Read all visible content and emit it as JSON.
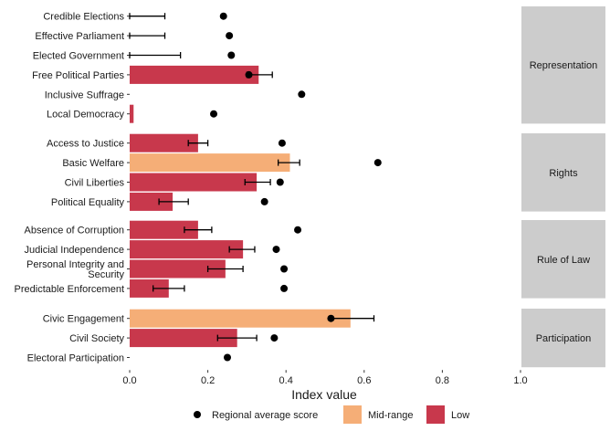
{
  "chart_data": {
    "type": "bar",
    "xlabel": "Index value",
    "xlim": [
      0,
      1
    ],
    "x_ticks": [
      "0.0",
      "0.2",
      "0.4",
      "0.6",
      "0.8",
      "1.0"
    ],
    "legend": {
      "position": "bottom",
      "items": [
        {
          "label": "Regional average score",
          "kind": "point",
          "color": "#000000"
        },
        {
          "label": "Mid-range",
          "kind": "fill",
          "color": "#F5AE77"
        },
        {
          "label": "Low",
          "kind": "fill",
          "color": "#C8384C"
        }
      ]
    },
    "colors": {
      "Mid-range": "#F5AE77",
      "Low": "#C8384C",
      "panel_strip": "#CCCCCC"
    },
    "panels": [
      {
        "name": "Representation",
        "rows": [
          {
            "label": "Credible Elections",
            "value": 0,
            "level": "Low",
            "err": [
              0,
              0.09
            ],
            "regional": 0.24
          },
          {
            "label": "Effective Parliament",
            "value": 0,
            "level": "Low",
            "err": [
              0,
              0.09
            ],
            "regional": 0.255
          },
          {
            "label": "Elected Government",
            "value": 0,
            "level": "Low",
            "err": [
              0,
              0.13
            ],
            "regional": 0.26
          },
          {
            "label": "Free Political Parties",
            "value": 0.33,
            "level": "Low",
            "err": [
              0.3,
              0.365
            ],
            "regional": 0.305
          },
          {
            "label": "Inclusive Suffrage",
            "value": 0,
            "level": "Low",
            "err": null,
            "regional": 0.44
          },
          {
            "label": "Local Democracy",
            "value": 0.01,
            "level": "Low",
            "err": null,
            "regional": 0.215
          }
        ]
      },
      {
        "name": "Rights",
        "rows": [
          {
            "label": "Access to Justice",
            "value": 0.175,
            "level": "Low",
            "err": [
              0.15,
              0.2
            ],
            "regional": 0.39
          },
          {
            "label": "Basic Welfare",
            "value": 0.41,
            "level": "Mid-range",
            "err": [
              0.38,
              0.435
            ],
            "regional": 0.635
          },
          {
            "label": "Civil Liberties",
            "value": 0.325,
            "level": "Low",
            "err": [
              0.295,
              0.36
            ],
            "regional": 0.385
          },
          {
            "label": "Political Equality",
            "value": 0.11,
            "level": "Low",
            "err": [
              0.075,
              0.15
            ],
            "regional": 0.345
          }
        ]
      },
      {
        "name": "Rule of Law",
        "rows": [
          {
            "label": "Absence of Corruption",
            "value": 0.175,
            "level": "Low",
            "err": [
              0.14,
              0.21
            ],
            "regional": 0.43
          },
          {
            "label": "Judicial Independence",
            "value": 0.29,
            "level": "Low",
            "err": [
              0.255,
              0.32
            ],
            "regional": 0.375
          },
          {
            "label": "Personal Integrity and Security",
            "value": 0.245,
            "level": "Low",
            "err": [
              0.2,
              0.29
            ],
            "regional": 0.395
          },
          {
            "label": "Predictable Enforcement",
            "value": 0.1,
            "level": "Low",
            "err": [
              0.06,
              0.14
            ],
            "regional": 0.395
          }
        ]
      },
      {
        "name": "Participation",
        "rows": [
          {
            "label": "Civic Engagement",
            "value": 0.565,
            "level": "Mid-range",
            "err": [
              0.515,
              0.625
            ],
            "regional": 0.515
          },
          {
            "label": "Civil Society",
            "value": 0.275,
            "level": "Low",
            "err": [
              0.225,
              0.325
            ],
            "regional": 0.37
          },
          {
            "label": "Electoral Participation",
            "value": 0,
            "level": "Low",
            "err": null,
            "regional": 0.25
          }
        ]
      }
    ]
  }
}
